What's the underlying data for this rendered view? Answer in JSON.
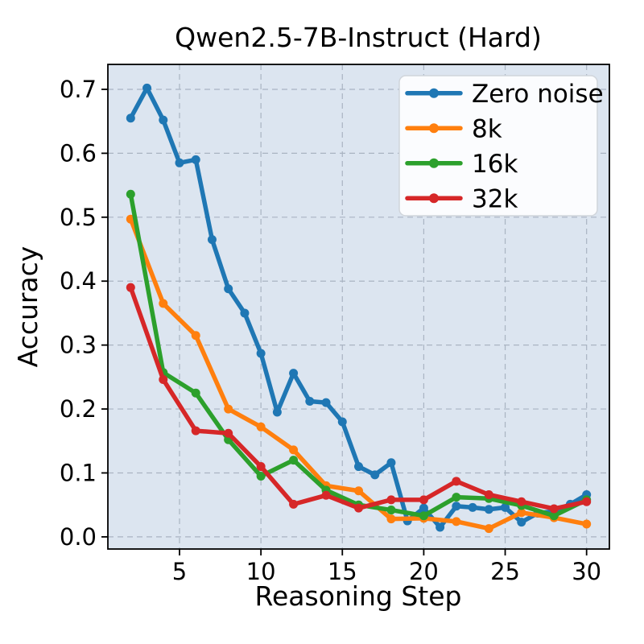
{
  "chart_data": {
    "type": "line",
    "title": "Qwen2.5-7B-Instruct (Hard)",
    "xlabel": "Reasoning Step",
    "ylabel": "Accuracy",
    "xlim": [
      0.6,
      31.4
    ],
    "ylim": [
      -0.019,
      0.739
    ],
    "xticks": [
      5,
      10,
      15,
      20,
      25,
      30
    ],
    "yticks": [
      {
        "v": 0.0,
        "label": "0.0"
      },
      {
        "v": 0.1,
        "label": "0.1"
      },
      {
        "v": 0.2,
        "label": "0.2"
      },
      {
        "v": 0.3,
        "label": "0.3"
      },
      {
        "v": 0.4,
        "label": "0.4"
      },
      {
        "v": 0.5,
        "label": "0.5"
      },
      {
        "v": 0.6,
        "label": "0.6"
      },
      {
        "v": 0.7,
        "label": "0.7"
      }
    ],
    "grid": true,
    "legend_position": "upper right",
    "colors": {
      "plot_background": "#dce5f0",
      "grid": "#a9b4c2",
      "spine": "#000000",
      "legend_background": "#fbfcfe",
      "legend_border": "#d0d5db"
    },
    "series": [
      {
        "name": "Zero noise",
        "color": "#1f77b4",
        "x": [
          2,
          3,
          4,
          5,
          6,
          7,
          8,
          9,
          10,
          11,
          12,
          13,
          14,
          15,
          16,
          17,
          18,
          19,
          20,
          21,
          22,
          23,
          24,
          25,
          26,
          27,
          28,
          29,
          30
        ],
        "y": [
          0.655,
          0.702,
          0.652,
          0.585,
          0.59,
          0.465,
          0.388,
          0.35,
          0.287,
          0.195,
          0.256,
          0.212,
          0.21,
          0.18,
          0.11,
          0.097,
          0.116,
          0.025,
          0.045,
          0.015,
          0.048,
          0.046,
          0.043,
          0.046,
          0.023,
          0.037,
          0.04,
          0.051,
          0.066
        ]
      },
      {
        "name": "8k",
        "color": "#ff7f0e",
        "x": [
          2,
          4,
          6,
          8,
          10,
          12,
          14,
          16,
          18,
          20,
          22,
          24,
          26,
          28,
          30
        ],
        "y": [
          0.497,
          0.365,
          0.315,
          0.2,
          0.172,
          0.136,
          0.08,
          0.072,
          0.028,
          0.029,
          0.024,
          0.013,
          0.038,
          0.03,
          0.02
        ]
      },
      {
        "name": "16k",
        "color": "#2ca02c",
        "x": [
          2,
          4,
          6,
          8,
          10,
          12,
          14,
          16,
          18,
          20,
          22,
          24,
          26,
          28,
          30
        ],
        "y": [
          0.536,
          0.257,
          0.225,
          0.152,
          0.095,
          0.12,
          0.073,
          0.05,
          0.042,
          0.033,
          0.062,
          0.06,
          0.049,
          0.033,
          0.058
        ]
      },
      {
        "name": "32k",
        "color": "#d62728",
        "x": [
          2,
          4,
          6,
          8,
          10,
          12,
          14,
          16,
          18,
          20,
          22,
          24,
          26,
          28,
          30
        ],
        "y": [
          0.39,
          0.246,
          0.166,
          0.162,
          0.11,
          0.051,
          0.065,
          0.045,
          0.058,
          0.058,
          0.087,
          0.066,
          0.055,
          0.044,
          0.055
        ]
      }
    ]
  }
}
